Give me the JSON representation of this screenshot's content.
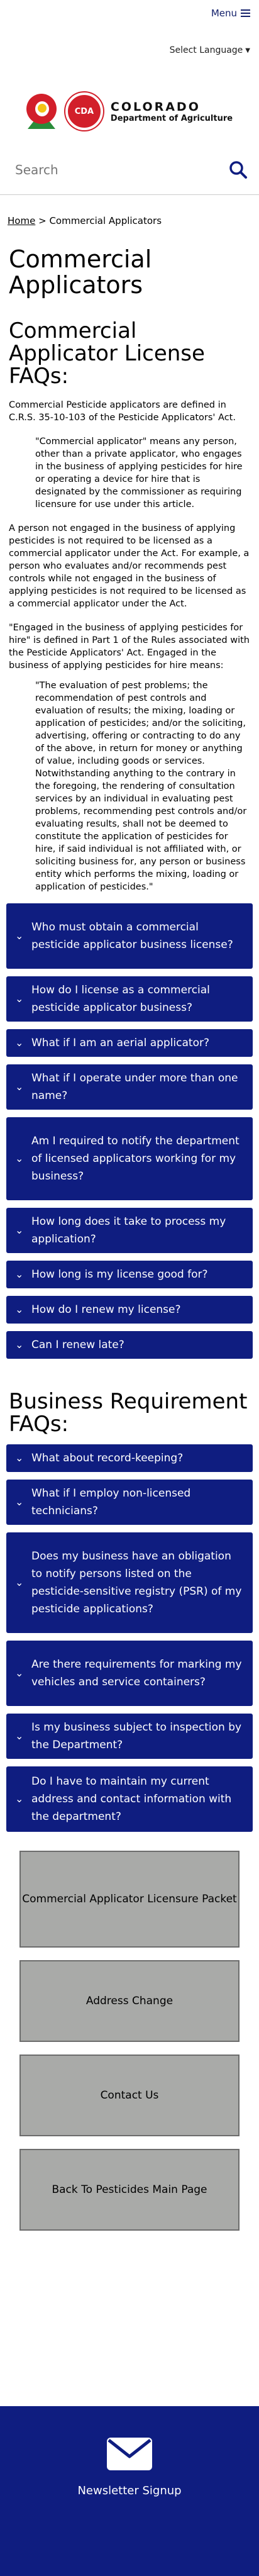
{
  "header": {
    "menu_label": "Menu",
    "language_label": "Select Language",
    "logo_line1": "COLORADO",
    "logo_line2": "Department of Agriculture",
    "logo_badge": "CDA",
    "search_placeholder": "Search"
  },
  "breadcrumb": {
    "home": "Home",
    "separator": ">",
    "current": "Commercial Applicators"
  },
  "page_title": "Commercial Applicators",
  "section1": {
    "heading": "Commercial Applicator License FAQs:",
    "intro": "Commercial Pesticide applicators are defined in C.R.S. 35-10-103 of the Pesticide Applicators' Act.",
    "quote1": "\"Commercial applicator\" means any person, other than a private applicator, who engages in the business of applying pesticides for hire or operating a device for hire that is designated by the commissioner as requiring licensure for use under this article.",
    "para2": "A person not engaged in the business of applying pesticides is not required to be licensed as a commercial applicator under the Act. For example, a person who evaluates and/or recommends pest controls while not engaged in the business of applying pesticides is not required to be licensed as a commercial applicator under the Act.",
    "para3": "\"Engaged in the business of applying pesticides for hire\" is defined in Part 1 of the Rules associated with the Pesticide Applicators' Act. Engaged in the business of applying pesticides for hire means:",
    "quote2": "\"The evaluation of pest problems; the recommendation of pest controls and evaluation of results; the mixing, loading or application of pesticides; and/or the soliciting, advertising, offering or contracting to do any of the above, in return for money or anything of value, including goods or services. Notwithstanding anything to the contrary in the foregoing, the rendering of consultation services by an individual in evaluating pest problems, recommending pest controls and/or evaluating results, shall not be deemed to constitute the application of pesticides for hire, if said individual is not affiliated with, or soliciting business for, any person or business entity which performs the mixing, loading or application of pesticides.\"",
    "faqs": [
      "Who must obtain a commercial pesticide applicator business license?",
      "How do I license as a commercial pesticide applicator business?",
      "What if I am an aerial applicator?",
      "What if I operate under more than one name?",
      "Am I required to notify the department of licensed applicators working for my business?",
      "How long does it take to process my application?",
      "How long is my license good for?",
      "How do I renew my license?",
      "Can I renew late?"
    ]
  },
  "section2": {
    "heading": "Business Requirement FAQs:",
    "faqs": [
      "What about record-keeping?",
      "What if I employ non-licensed technicians?",
      "Does my business have an obligation to notify persons listed on the pesticide-sensitive registry (PSR) of my pesticide applications?",
      "Are there requirements for marking my vehicles and service containers?",
      "Is my business subject to inspection by the Department?",
      "Do I have to maintain my current address and contact information with the department?"
    ]
  },
  "link_buttons": [
    "Commercial Applicator Licensure Packet",
    "Address Change",
    "Contact Us",
    "Back To Pesticides Main Page"
  ],
  "footer": {
    "newsletter_label": "Newsletter Signup"
  },
  "icons": {
    "menu": "hamburger-icon",
    "language": "chevron-down-icon",
    "search": "search-icon",
    "faq": "chevron-down-icon",
    "newsletter": "envelope-icon"
  },
  "colors": {
    "accordion_bg": "#0f1d80",
    "button_bg": "#a9aaa8",
    "footer_bg": "#0f1d80"
  }
}
